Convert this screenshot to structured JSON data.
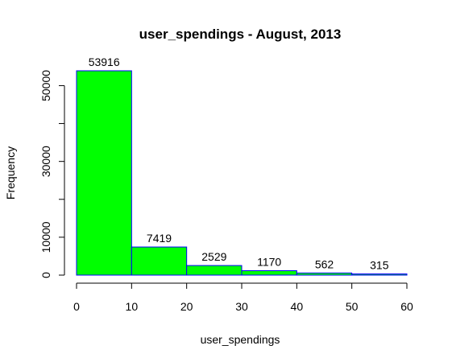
{
  "chart_data": {
    "type": "bar",
    "title": "user_spendings - August, 2013",
    "xlabel": "user_spendings",
    "ylabel": "Frequency",
    "bins": [
      {
        "from": 0,
        "to": 10,
        "value": 53916,
        "label": "53916",
        "fill": "#00ff00"
      },
      {
        "from": 10,
        "to": 20,
        "value": 7419,
        "label": "7419",
        "fill": "#00ff00"
      },
      {
        "from": 20,
        "to": 30,
        "value": 2529,
        "label": "2529",
        "fill": "#00ff00"
      },
      {
        "from": 30,
        "to": 40,
        "value": 1170,
        "label": "1170",
        "fill": "#00ff00"
      },
      {
        "from": 40,
        "to": 50,
        "value": 562,
        "label": "562",
        "fill": "#00ff00"
      },
      {
        "from": 50,
        "to": 60,
        "value": 315,
        "label": "315",
        "fill": "#00ff00"
      }
    ],
    "border_color": "#0000ff",
    "x_ticks": [
      0,
      10,
      20,
      30,
      40,
      50,
      60
    ],
    "x_tick_labels": [
      "0",
      "10",
      "20",
      "30",
      "40",
      "50",
      "60"
    ],
    "y_ticks": [
      0,
      10000,
      20000,
      30000,
      40000,
      50000
    ],
    "y_tick_labels": [
      "0",
      "10000",
      "30000",
      "50000"
    ],
    "y_labeled_ticks": [
      0,
      10000,
      30000,
      50000
    ],
    "xlim": [
      0,
      60
    ],
    "ylim": [
      0,
      53916
    ],
    "grid": false,
    "legend": "none"
  }
}
